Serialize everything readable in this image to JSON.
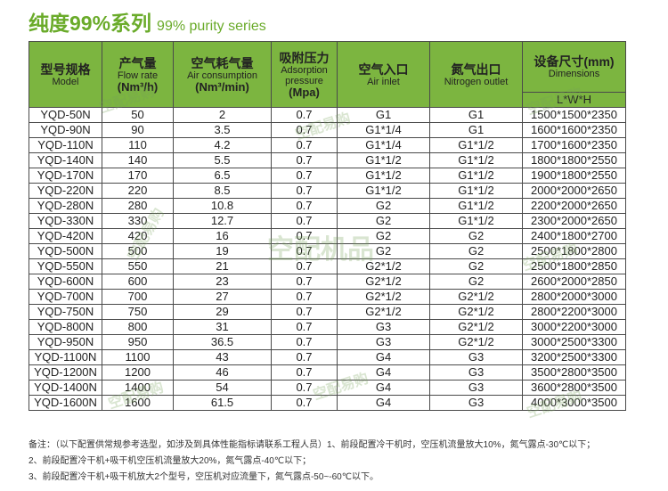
{
  "title": {
    "zh": "纯度99%系列",
    "en": "99% purity series"
  },
  "headers": {
    "model": {
      "zh": "型号规格",
      "en": "Model"
    },
    "flow": {
      "zh": "产气量",
      "en": "Flow rate",
      "unit": "(Nm³/h)"
    },
    "air_consumption": {
      "zh": "空气耗气量",
      "en": "Air consumption",
      "unit": "(Nm³/min)"
    },
    "pressure": {
      "zh": "吸附压力",
      "en1": "Adsorption",
      "en2": "pressure",
      "unit": "(Mpa)"
    },
    "air_inlet": {
      "zh": "空气入口",
      "en": "Air inlet"
    },
    "n2_outlet": {
      "zh": "氮气出口",
      "en": "Nitrogen outlet"
    },
    "dimensions": {
      "zh": "设备尺寸(mm)",
      "en": "Dimensions",
      "sub": "L*W*H"
    }
  },
  "rows": [
    [
      "YQD-50N",
      "50",
      "2",
      "0.7",
      "G1",
      "G1",
      "1500*1500*2350"
    ],
    [
      "YQD-90N",
      "90",
      "3.5",
      "0.7",
      "G1*1/4",
      "G1",
      "1600*1600*2350"
    ],
    [
      "YQD-110N",
      "110",
      "4.2",
      "0.7",
      "G1*1/4",
      "G1*1/2",
      "1700*1600*2350"
    ],
    [
      "YQD-140N",
      "140",
      "5.5",
      "0.7",
      "G1*1/2",
      "G1*1/2",
      "1800*1800*2550"
    ],
    [
      "YQD-170N",
      "170",
      "6.5",
      "0.7",
      "G1*1/2",
      "G1*1/2",
      "1900*1800*2550"
    ],
    [
      "YQD-220N",
      "220",
      "8.5",
      "0.7",
      "G1*1/2",
      "G1*1/2",
      "2000*2000*2650"
    ],
    [
      "YQD-280N",
      "280",
      "10.8",
      "0.7",
      "G2",
      "G1*1/2",
      "2200*2000*2650"
    ],
    [
      "YQD-330N",
      "330",
      "12.7",
      "0.7",
      "G2",
      "G1*1/2",
      "2300*2000*2650"
    ],
    [
      "YQD-420N",
      "420",
      "16",
      "0.7",
      "G2",
      "G2",
      "2400*1800*2700"
    ],
    [
      "YQD-500N",
      "500",
      "19",
      "0.7",
      "G2",
      "G2",
      "2500*1800*2800"
    ],
    [
      "YQD-550N",
      "550",
      "21",
      "0.7",
      "G2*1/2",
      "G2",
      "2500*1800*2850"
    ],
    [
      "YQD-600N",
      "600",
      "23",
      "0.7",
      "G2*1/2",
      "G2",
      "2600*2000*2850"
    ],
    [
      "YQD-700N",
      "700",
      "27",
      "0.7",
      "G2*1/2",
      "G2*1/2",
      "2800*2000*3000"
    ],
    [
      "YQD-750N",
      "750",
      "29",
      "0.7",
      "G2*1/2",
      "G2*1/2",
      "2800*2200*3000"
    ],
    [
      "YQD-800N",
      "800",
      "31",
      "0.7",
      "G3",
      "G2*1/2",
      "3000*2200*3000"
    ],
    [
      "YQD-950N",
      "950",
      "36.5",
      "0.7",
      "G3",
      "G2*1/2",
      "3000*2500*3300"
    ],
    [
      "YQD-1100N",
      "1100",
      "43",
      "0.7",
      "G4",
      "G3",
      "3200*2500*3300"
    ],
    [
      "YQD-1200N",
      "1200",
      "46",
      "0.7",
      "G4",
      "G3",
      "3500*2800*3500"
    ],
    [
      "YQD-1400N",
      "1400",
      "54",
      "0.7",
      "G4",
      "G3",
      "3600*2800*3500"
    ],
    [
      "YQD-1600N",
      "1600",
      "61.5",
      "0.7",
      "G4",
      "G3",
      "4000*3000*3500"
    ]
  ],
  "notes": [
    "备注：（以下配置供常规参考选型，如涉及到具体性能指标请联系工程人员）1、前段配置冷干机时，空压机流量放大10%，氮气露点-30℃以下；",
    "2、前段配置冷干机+吸干机空压机流量放大20%，氮气露点-40℃以下；",
    "3、前段配置冷干机+吸干机放大2个型号，空压机对应流量下，氮气露点-50~-60℃以下。"
  ],
  "watermark": {
    "brand": "空配易购",
    "center": "空配机品"
  }
}
